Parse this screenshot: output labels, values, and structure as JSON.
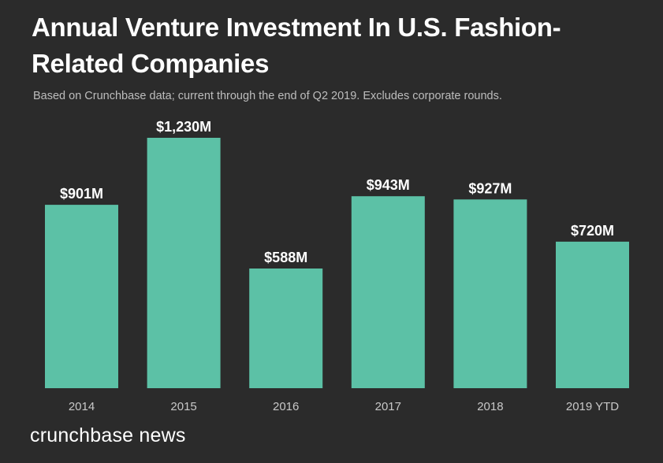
{
  "header": {
    "title": "Annual Venture Investment In U.S. Fashion-Related Companies",
    "subtitle": "Based on Crunchbase data; current through the end of Q2 2019. Excludes corporate rounds."
  },
  "footer": {
    "brand": "crunchbase news"
  },
  "colors": {
    "background": "#2b2b2b",
    "bar": "#5cc1a6",
    "text": "#ffffff",
    "muted_text": "#bdbdbd"
  },
  "chart_data": {
    "type": "bar",
    "title": "Annual Venture Investment In U.S. Fashion-Related Companies",
    "subtitle": "Based on Crunchbase data; current through the end of Q2 2019. Excludes corporate rounds.",
    "categories": [
      "2014",
      "2015",
      "2016",
      "2017",
      "2018",
      "2019 YTD"
    ],
    "values": [
      901,
      1230,
      588,
      943,
      927,
      720
    ],
    "data_labels": [
      "$901M",
      "$1,230M",
      "$588M",
      "$943M",
      "$927M",
      "$720M"
    ],
    "unit": "$M",
    "ylim": [
      0,
      1230
    ],
    "grid": false,
    "legend": "none"
  }
}
